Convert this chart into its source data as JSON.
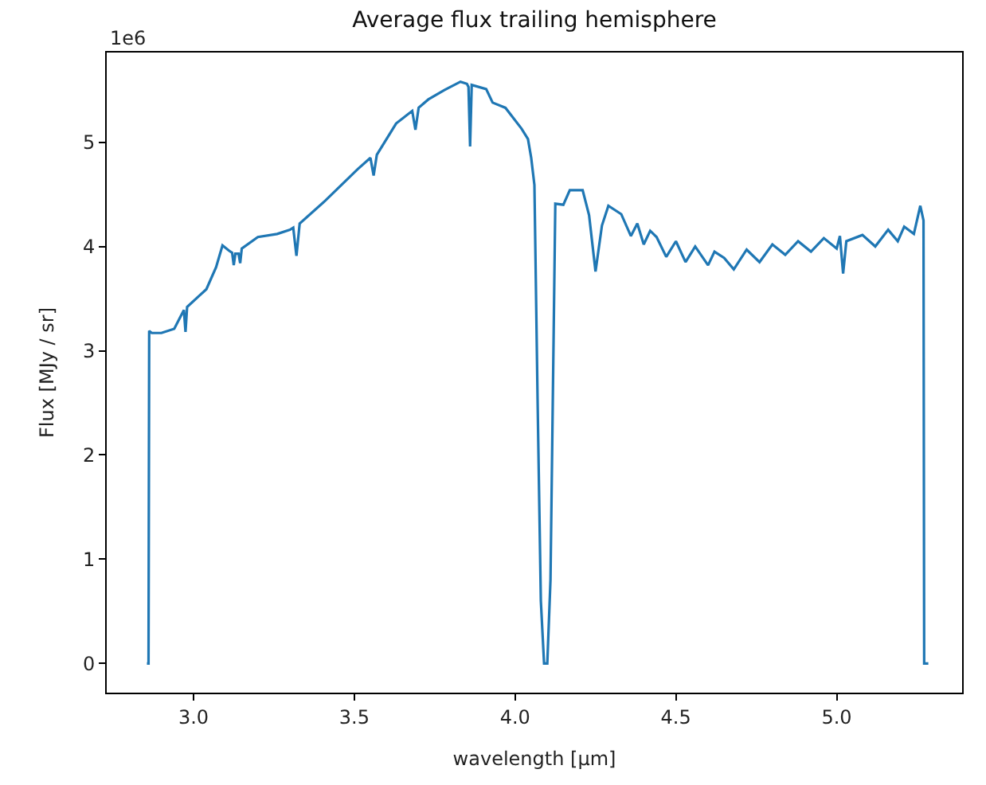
{
  "chart_data": {
    "type": "line",
    "title": "Average flux trailing hemisphere",
    "xlabel": "wavelength [μm]",
    "ylabel": "Flux [MJy / sr]",
    "annotations": [
      "1e6"
    ],
    "xlim": [
      2.73,
      5.39
    ],
    "xticks": [
      {
        "value": 3,
        "label": "3.0"
      },
      {
        "value": 3.5,
        "label": "3.5"
      },
      {
        "value": 4,
        "label": "4.0"
      },
      {
        "value": 4.5,
        "label": "4.5"
      },
      {
        "value": 5,
        "label": "5.0"
      }
    ],
    "ylim": [
      -0.28,
      5.86
    ],
    "yticks": [
      0,
      1,
      2,
      3,
      4,
      5
    ],
    "grid": false,
    "marker": "none",
    "line_style": "solid",
    "series": [
      {
        "color": "#1f77b4",
        "x": [
          2.855,
          2.86,
          2.862,
          2.87,
          2.9,
          2.94,
          2.96,
          2.97,
          2.975,
          2.98,
          3.04,
          3.07,
          3.09,
          3.11,
          3.12,
          3.125,
          3.13,
          3.14,
          3.145,
          3.15,
          3.2,
          3.26,
          3.3,
          3.31,
          3.32,
          3.33,
          3.41,
          3.51,
          3.55,
          3.56,
          3.57,
          3.63,
          3.68,
          3.69,
          3.7,
          3.73,
          3.78,
          3.83,
          3.85,
          3.855,
          3.86,
          3.865,
          3.91,
          3.93,
          3.97,
          4.02,
          4.04,
          4.05,
          4.06,
          4.07,
          4.08,
          4.09,
          4.1,
          4.11,
          4.12,
          4.125,
          4.15,
          4.17,
          4.21,
          4.23,
          4.25,
          4.27,
          4.29,
          4.33,
          4.36,
          4.38,
          4.4,
          4.42,
          4.44,
          4.47,
          4.5,
          4.53,
          4.56,
          4.6,
          4.62,
          4.65,
          4.68,
          4.72,
          4.76,
          4.8,
          4.84,
          4.88,
          4.92,
          4.96,
          5.0,
          5.01,
          5.02,
          5.03,
          5.08,
          5.12,
          5.16,
          5.19,
          5.21,
          5.24,
          5.26,
          5.27,
          5.272,
          5.285
        ],
        "values": [
          0,
          0,
          3.19,
          3.17,
          3.17,
          3.21,
          3.33,
          3.39,
          3.18,
          3.42,
          3.59,
          3.8,
          4.01,
          3.96,
          3.94,
          3.82,
          3.93,
          3.93,
          3.84,
          3.98,
          4.09,
          4.12,
          4.16,
          4.18,
          3.91,
          4.22,
          4.44,
          4.74,
          4.85,
          4.68,
          4.88,
          5.18,
          5.3,
          5.12,
          5.33,
          5.41,
          5.5,
          5.58,
          5.56,
          5.53,
          4.96,
          5.55,
          5.51,
          5.38,
          5.33,
          5.13,
          5.03,
          4.85,
          4.59,
          2.5,
          0.6,
          0,
          0,
          0.8,
          3.2,
          4.41,
          4.4,
          4.54,
          4.54,
          4.3,
          3.76,
          4.2,
          4.39,
          4.31,
          4.1,
          4.22,
          4.02,
          4.15,
          4.09,
          3.9,
          4.05,
          3.85,
          4.0,
          3.82,
          3.95,
          3.89,
          3.78,
          3.97,
          3.85,
          4.02,
          3.92,
          4.05,
          3.95,
          4.08,
          3.98,
          4.1,
          3.74,
          4.05,
          4.11,
          4.0,
          4.16,
          4.05,
          4.19,
          4.12,
          4.39,
          4.25,
          0,
          0
        ]
      }
    ]
  }
}
